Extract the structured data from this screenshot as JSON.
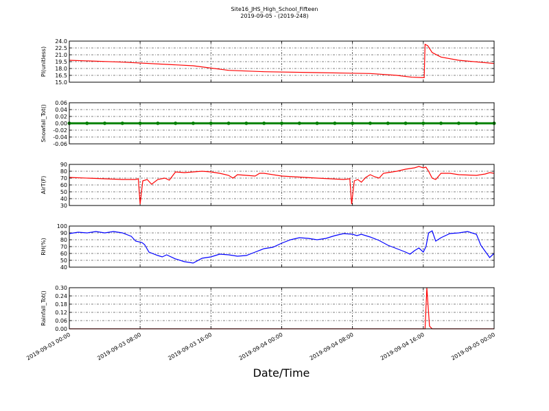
{
  "figure": {
    "title": "Site16_JHS_High_School_Fifteen",
    "subtitle": "2019-09-05 - (2019-248)",
    "xlabel": "Date/Time"
  },
  "chart_data": [
    {
      "type": "line",
      "ylabel": "PI(unitless)",
      "color": "#ff0000",
      "grid": true,
      "xlim": [
        "2019-09-03 00:00",
        "2019-09-05 00:00"
      ],
      "xticks": [
        "2019-09-03 00:00",
        "2019-09-03 08:00",
        "2019-09-03 16:00",
        "2019-09-04 00:00",
        "2019-09-04 08:00",
        "2019-09-04 16:00",
        "2019-09-05 00:00"
      ],
      "ylim": [
        15,
        24
      ],
      "yticks": [
        {
          "value": 15,
          "label": "15.0"
        },
        16.5,
        {
          "value": 18,
          "label": "18.0"
        },
        19.5,
        {
          "value": 21,
          "label": "21.0"
        },
        22.5,
        {
          "value": 24,
          "label": "24.0"
        }
      ],
      "x": [
        "2019-09-03 00:00",
        "2019-09-03 06:00",
        "2019-09-03 11:00",
        "2019-09-03 14:00",
        "2019-09-03 18:00",
        "2019-09-03 22:00",
        "2019-09-04 04:00",
        "2019-09-04 10:00",
        "2019-09-04 13:00",
        "2019-09-04 14:42",
        "2019-09-04 16:06",
        "2019-09-04 16:12",
        "2019-09-04 16:30",
        "2019-09-04 17:00",
        "2019-09-04 18:00",
        "2019-09-04 20:00",
        "2019-09-05 00:00"
      ],
      "values": [
        19.8,
        19.4,
        18.9,
        18.6,
        17.6,
        17.3,
        17.1,
        16.9,
        16.5,
        16.1,
        16.0,
        23.3,
        23.0,
        21.5,
        20.5,
        19.8,
        19.1
      ]
    },
    {
      "type": "line",
      "ylabel": "Snowfall_Tot()",
      "color": "#008000",
      "marker": true,
      "grid": true,
      "xlim": [
        "2019-09-03 00:00",
        "2019-09-05 00:00"
      ],
      "xticks": [
        "2019-09-03 00:00",
        "2019-09-03 08:00",
        "2019-09-03 16:00",
        "2019-09-04 00:00",
        "2019-09-04 08:00",
        "2019-09-04 16:00",
        "2019-09-05 00:00"
      ],
      "ylim": [
        -0.06,
        0.06
      ],
      "yticks": [
        -0.06,
        -0.04,
        -0.02,
        {
          "value": 0,
          "label": "0.00"
        },
        0.02,
        0.04,
        0.06
      ],
      "x": [
        "2019-09-03 00:00",
        "2019-09-03 02:00",
        "2019-09-03 04:00",
        "2019-09-03 06:00",
        "2019-09-03 08:00",
        "2019-09-03 10:00",
        "2019-09-03 12:00",
        "2019-09-03 14:00",
        "2019-09-03 16:00",
        "2019-09-03 18:00",
        "2019-09-03 20:00",
        "2019-09-03 22:00",
        "2019-09-04 00:00",
        "2019-09-04 02:00",
        "2019-09-04 04:00",
        "2019-09-04 06:00",
        "2019-09-04 08:00",
        "2019-09-04 10:00",
        "2019-09-04 12:00",
        "2019-09-04 14:00",
        "2019-09-04 16:00",
        "2019-09-04 18:00",
        "2019-09-04 20:00",
        "2019-09-04 22:00",
        "2019-09-05 00:00"
      ],
      "values": [
        0,
        0,
        0,
        0,
        0,
        0,
        0,
        0,
        0,
        0,
        0,
        0,
        0,
        0,
        0,
        0,
        0,
        0,
        0,
        0,
        0,
        0,
        0,
        0,
        0
      ]
    },
    {
      "type": "line",
      "ylabel": "AirT(F)",
      "color": "#ff0000",
      "grid": true,
      "xlim": [
        "2019-09-03 00:00",
        "2019-09-05 00:00"
      ],
      "xticks": [
        "2019-09-03 00:00",
        "2019-09-03 08:00",
        "2019-09-03 16:00",
        "2019-09-04 00:00",
        "2019-09-04 08:00",
        "2019-09-04 16:00",
        "2019-09-05 00:00"
      ],
      "ylim": [
        30,
        90
      ],
      "yticks": [
        30,
        40,
        50,
        60,
        70,
        80,
        90
      ],
      "x": [
        "2019-09-03 00:00",
        "2019-09-03 04:00",
        "2019-09-03 06:00",
        "2019-09-03 07:30",
        "2019-09-03 07:48",
        "2019-09-03 08:00",
        "2019-09-03 08:18",
        "2019-09-03 08:48",
        "2019-09-03 09:18",
        "2019-09-03 10:00",
        "2019-09-03 10:48",
        "2019-09-03 11:18",
        "2019-09-03 12:00",
        "2019-09-03 13:00",
        "2019-09-03 14:00",
        "2019-09-03 15:00",
        "2019-09-03 16:00",
        "2019-09-03 17:00",
        "2019-09-03 18:00",
        "2019-09-03 18:30",
        "2019-09-03 19:00",
        "2019-09-03 20:00",
        "2019-09-03 21:00",
        "2019-09-03 21:30",
        "2019-09-03 22:00",
        "2019-09-04 00:00",
        "2019-09-04 04:00",
        "2019-09-04 07:00",
        "2019-09-04 07:42",
        "2019-09-04 07:54",
        "2019-09-04 08:12",
        "2019-09-04 08:36",
        "2019-09-04 09:00",
        "2019-09-04 09:30",
        "2019-09-04 10:00",
        "2019-09-04 10:30",
        "2019-09-04 11:00",
        "2019-09-04 11:30",
        "2019-09-04 12:00",
        "2019-09-04 13:00",
        "2019-09-04 14:00",
        "2019-09-04 15:00",
        "2019-09-04 15:30",
        "2019-09-04 16:00",
        "2019-09-04 16:18",
        "2019-09-04 16:36",
        "2019-09-04 17:00",
        "2019-09-04 17:24",
        "2019-09-04 18:00",
        "2019-09-04 19:00",
        "2019-09-04 20:00",
        "2019-09-04 22:00",
        "2019-09-04 23:00",
        "2019-09-04 23:30",
        "2019-09-05 00:00"
      ],
      "values": [
        71,
        69,
        68,
        68,
        69,
        32,
        66,
        68,
        61,
        68,
        70,
        67,
        79,
        78,
        79,
        80,
        79,
        77,
        74,
        70,
        75,
        74,
        73,
        77,
        77,
        73,
        70,
        68,
        69,
        32,
        66,
        68,
        64,
        71,
        75,
        72,
        70,
        77,
        78,
        80,
        83,
        85,
        87,
        85,
        86,
        80,
        70,
        68,
        77,
        77,
        75,
        74,
        76,
        78,
        77
      ]
    },
    {
      "type": "line",
      "ylabel": "RH(%)",
      "color": "#0000ff",
      "grid": true,
      "xlim": [
        "2019-09-03 00:00",
        "2019-09-05 00:00"
      ],
      "xticks": [
        "2019-09-03 00:00",
        "2019-09-03 08:00",
        "2019-09-03 16:00",
        "2019-09-04 00:00",
        "2019-09-04 08:00",
        "2019-09-04 16:00",
        "2019-09-05 00:00"
      ],
      "ylim": [
        40,
        100
      ],
      "yticks": [
        40,
        50,
        60,
        70,
        80,
        90,
        100
      ],
      "x": [
        "2019-09-03 00:00",
        "2019-09-03 01:00",
        "2019-09-03 02:00",
        "2019-09-03 03:00",
        "2019-09-03 04:00",
        "2019-09-03 05:00",
        "2019-09-03 06:00",
        "2019-09-03 07:00",
        "2019-09-03 07:30",
        "2019-09-03 08:12",
        "2019-09-03 08:30",
        "2019-09-03 09:00",
        "2019-09-03 10:00",
        "2019-09-03 10:30",
        "2019-09-03 11:00",
        "2019-09-03 12:00",
        "2019-09-03 13:00",
        "2019-09-03 14:00",
        "2019-09-03 15:00",
        "2019-09-03 16:00",
        "2019-09-03 17:00",
        "2019-09-03 18:00",
        "2019-09-03 19:00",
        "2019-09-03 20:00",
        "2019-09-03 21:00",
        "2019-09-03 22:00",
        "2019-09-03 23:00",
        "2019-09-04 00:00",
        "2019-09-04 01:00",
        "2019-09-04 02:00",
        "2019-09-04 03:00",
        "2019-09-04 04:00",
        "2019-09-04 05:00",
        "2019-09-04 06:00",
        "2019-09-04 07:00",
        "2019-09-04 08:00",
        "2019-09-04 08:30",
        "2019-09-04 09:00",
        "2019-09-04 10:00",
        "2019-09-04 11:00",
        "2019-09-04 12:00",
        "2019-09-04 13:00",
        "2019-09-04 14:00",
        "2019-09-04 14:30",
        "2019-09-04 15:00",
        "2019-09-04 15:30",
        "2019-09-04 16:00",
        "2019-09-04 16:18",
        "2019-09-04 16:36",
        "2019-09-04 17:00",
        "2019-09-04 17:24",
        "2019-09-04 18:00",
        "2019-09-04 19:00",
        "2019-09-04 20:00",
        "2019-09-04 21:00",
        "2019-09-04 22:00",
        "2019-09-04 22:30",
        "2019-09-04 23:00",
        "2019-09-04 23:30",
        "2019-09-05 00:00"
      ],
      "values": [
        89,
        91,
        90,
        92,
        90,
        92,
        90,
        85,
        78,
        76,
        73,
        62,
        57,
        55,
        58,
        52,
        48,
        46,
        53,
        55,
        59,
        58,
        56,
        57,
        62,
        67,
        69,
        75,
        80,
        83,
        82,
        80,
        82,
        86,
        89,
        88,
        86,
        88,
        84,
        79,
        72,
        67,
        62,
        59,
        64,
        68,
        62,
        70,
        90,
        93,
        78,
        83,
        89,
        90,
        92,
        88,
        72,
        63,
        54,
        60
      ]
    },
    {
      "type": "line",
      "ylabel": "Rainfall_Tot()",
      "color": "#ff0000",
      "grid": true,
      "xlim": [
        "2019-09-03 00:00",
        "2019-09-05 00:00"
      ],
      "xticks": [
        "2019-09-03 00:00",
        "2019-09-03 08:00",
        "2019-09-03 16:00",
        "2019-09-04 00:00",
        "2019-09-04 08:00",
        "2019-09-04 16:00",
        "2019-09-05 00:00"
      ],
      "ylim": [
        0,
        0.3
      ],
      "yticks": [
        {
          "value": 0,
          "label": "0.00"
        },
        0.06,
        0.12,
        0.18,
        0.24,
        {
          "value": 0.3,
          "label": "0.30"
        }
      ],
      "x": [
        "2019-09-03 00:00",
        "2019-09-04 16:12",
        "2019-09-04 16:24",
        "2019-09-04 16:42",
        "2019-09-04 17:00",
        "2019-09-05 00:00"
      ],
      "values": [
        0,
        0,
        0.3,
        0.02,
        0,
        0
      ]
    }
  ]
}
